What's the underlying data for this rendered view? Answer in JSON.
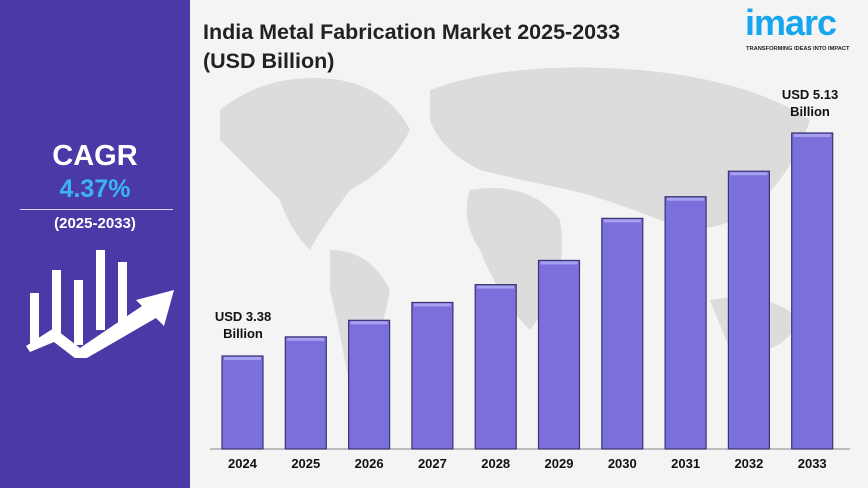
{
  "title_line1": "India Metal Fabrication Market 2025-2033",
  "title_line2": "(USD Billion)",
  "logo": {
    "text": "imarc",
    "tagline": "TRANSFORMING IDEAS INTO IMPACT"
  },
  "sidebar": {
    "cagr_label": "CAGR",
    "cagr_value": "4.37%",
    "period": "(2025-2033)",
    "icon": "growth-chart-arrow-icon"
  },
  "colors": {
    "sidebar": "#4a3aa8",
    "bar": "#7b6fdc",
    "cagr_value": "#3db4f2",
    "brand": "#17a6ee"
  },
  "annotations": {
    "first_line1": "USD 3.38",
    "first_line2": "Billion",
    "last_line1": "USD 5.13",
    "last_line2": "Billion"
  },
  "chart_data": {
    "type": "bar",
    "title": "India Metal Fabrication Market 2025-2033 (USD Billion)",
    "categories": [
      "2024",
      "2025",
      "2026",
      "2027",
      "2028",
      "2029",
      "2030",
      "2031",
      "2032",
      "2033"
    ],
    "values": [
      3.38,
      3.53,
      3.66,
      3.8,
      3.94,
      4.13,
      4.46,
      4.63,
      4.83,
      5.13
    ],
    "unit": "USD Billion",
    "ylim": [
      2.65,
      5.13
    ],
    "grid": false,
    "legend": "none"
  }
}
